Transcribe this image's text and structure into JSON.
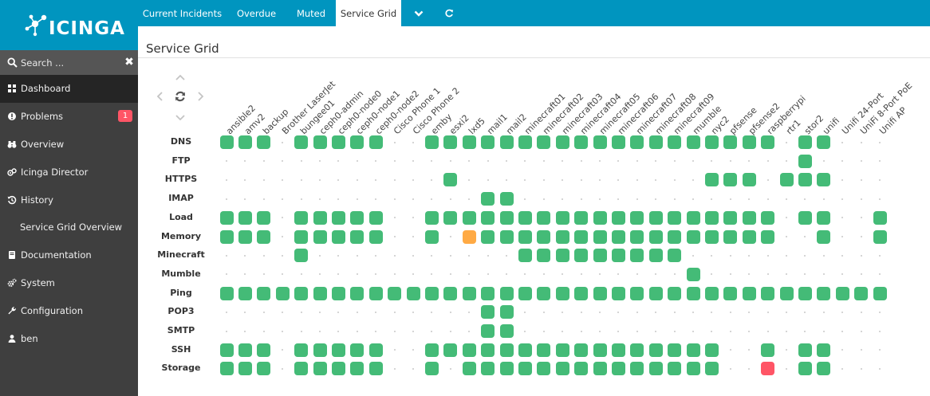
{
  "logo": {
    "text": "ICINGA"
  },
  "search": {
    "placeholder": "Search ..."
  },
  "nav": {
    "items": [
      {
        "label": "Dashboard",
        "icon": "dashboard-icon",
        "active": true
      },
      {
        "label": "Problems",
        "icon": "problems-icon",
        "badge": "1"
      },
      {
        "label": "Overview",
        "icon": "binoculars-icon"
      },
      {
        "label": "Icinga Director",
        "icon": "director-icon"
      },
      {
        "label": "History",
        "icon": "history-icon"
      },
      {
        "label": "Service Grid Overview",
        "sub": true
      },
      {
        "label": "Documentation",
        "icon": "book-icon"
      },
      {
        "label": "System",
        "icon": "cogs-icon"
      },
      {
        "label": "Configuration",
        "icon": "wrench-icon"
      },
      {
        "label": "ben",
        "icon": "user-icon"
      }
    ]
  },
  "tabs": [
    {
      "label": "Current Incidents"
    },
    {
      "label": "Overdue"
    },
    {
      "label": "Muted"
    },
    {
      "label": "Service Grid",
      "active": true
    }
  ],
  "page": {
    "title": "Service Grid"
  },
  "colors": {
    "ok": "#44bb77",
    "warning": "#ffaa44",
    "critical": "#ff5566",
    "brand": "#0095bf"
  },
  "grid": {
    "hosts": [
      "ansible2",
      "amv2",
      "backup",
      "Brother LaserJet",
      "bungee01",
      "ceph0-admin",
      "ceph0-node0",
      "ceph0-node1",
      "ceph0-node2",
      "Cisco Phone 1",
      "Cisco Phone 2",
      "emby",
      "esxi2",
      "lxd5",
      "mail1",
      "mail2",
      "minecraft01",
      "minecraft02",
      "minecraft03",
      "minecraft04",
      "minecraft05",
      "minecraft06",
      "minecraft07",
      "minecraft08",
      "minecraft09",
      "mumble",
      "nyc2",
      "pfsense",
      "pfsense2",
      "raspberrypi",
      "rtr1",
      "stor2",
      "unifi",
      "Unifi 24-Port",
      "UniFi 8-Port PoE",
      "Unifi AP"
    ],
    "rows": [
      {
        "service": "DNS",
        "cells": "OOO.OOOOO..OOOOOOOOOOOOOOOOOOO.OO..."
      },
      {
        "service": "FTP",
        "cells": "...............................O...."
      },
      {
        "service": "HTTPS",
        "cells": "............O.............OOO.OOO..."
      },
      {
        "service": "IMAP",
        "cells": "..............OO...................."
      },
      {
        "service": "Load",
        "cells": "OOO.OOOOO..OOOOOOOOOOOOOOOOOOO.OO..O"
      },
      {
        "service": "Memory",
        "cells": "OOO.OOOOO..O.WOOOOOOOOOOOOOOOO..O..O"
      },
      {
        "service": "Minecraft",
        "cells": "....O...........OOOOOOOOO..........."
      },
      {
        "service": "Mumble",
        "cells": ".........................O.........."
      },
      {
        "service": "Ping",
        "cells": "OOOOOOOOOOOOOOOOOOOOOOOOOOOOOOOOOOOO"
      },
      {
        "service": "POP3",
        "cells": "..............OO...................."
      },
      {
        "service": "SMTP",
        "cells": "..............OO...................."
      },
      {
        "service": "SSH",
        "cells": "OOO.OOOOO..OOOOOOOOOOOOOOOO..O.OO..."
      },
      {
        "service": "Storage",
        "cells": "OOO.OOOOO..O.OOOOOOOOOOOOOO..C.OO..."
      }
    ]
  }
}
